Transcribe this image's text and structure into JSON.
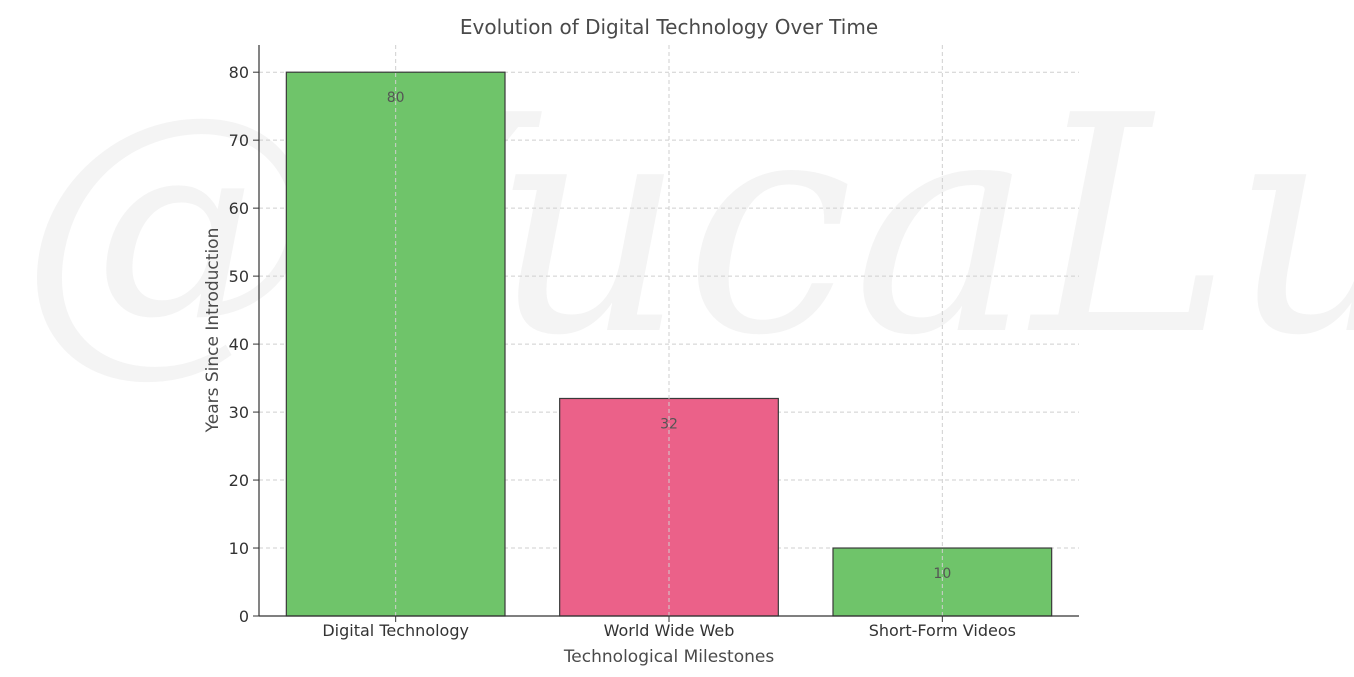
{
  "watermark": "@YucaLuna",
  "chart_data": {
    "type": "bar",
    "title": "Evolution of Digital Technology Over Time",
    "xlabel": "Technological Milestones",
    "ylabel": "Years Since Introduction",
    "categories": [
      "Digital Technology",
      "World Wide Web",
      "Short-Form Videos"
    ],
    "values": [
      80,
      32,
      10
    ],
    "colors": [
      "#6fc46a",
      "#eb6189",
      "#6fc46a"
    ],
    "ylim": [
      0,
      84
    ],
    "yticks": [
      0,
      10,
      20,
      30,
      40,
      50,
      60,
      70,
      80
    ],
    "grid": true,
    "legend": "none"
  }
}
